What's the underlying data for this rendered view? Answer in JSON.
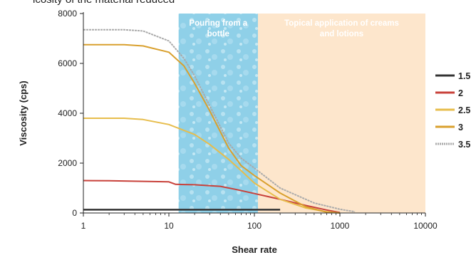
{
  "caption_fragment": "lcosity of the material reduced",
  "chart_data": {
    "type": "line",
    "xlabel": "Shear rate",
    "ylabel": "Viscosity (cps)",
    "x_scale": "log",
    "xlim": [
      1,
      10000
    ],
    "ylim": [
      0,
      8000
    ],
    "x_ticks": [
      1,
      10,
      100,
      1000,
      10000
    ],
    "x_tick_labels": [
      "1",
      "10",
      "100",
      "1000",
      "10000"
    ],
    "y_ticks": [
      0,
      2000,
      4000,
      6000,
      8000
    ],
    "y_tick_labels": [
      "0",
      "2000",
      "4000",
      "6000",
      "8000"
    ],
    "grid": false,
    "legend_position": "right",
    "regions": [
      {
        "label_lines": [
          "Pouring from a",
          "bottle"
        ],
        "x_range": [
          13,
          110
        ],
        "color": "#8fd0e8"
      },
      {
        "label_lines": [
          "Topical application of creams",
          "and lotions"
        ],
        "x_range": [
          110,
          10000
        ],
        "color": "#fde6cc"
      }
    ],
    "series": [
      {
        "name": "1.5",
        "color": "#333333",
        "x": [
          1,
          10,
          50,
          200
        ],
        "y": [
          130,
          130,
          130,
          130
        ]
      },
      {
        "name": "2",
        "color": "#c8413a",
        "x": [
          1,
          2,
          5,
          10,
          12,
          20,
          40,
          60,
          100,
          200,
          400,
          700,
          1000
        ],
        "y": [
          1300,
          1290,
          1270,
          1250,
          1150,
          1130,
          1070,
          950,
          780,
          550,
          300,
          120,
          20
        ]
      },
      {
        "name": "2.5",
        "color": "#e7bd4c",
        "x": [
          1,
          3,
          5,
          10,
          20,
          30,
          50,
          70,
          100,
          200,
          400,
          700,
          1000
        ],
        "y": [
          3800,
          3800,
          3750,
          3550,
          3150,
          2750,
          2150,
          1700,
          1200,
          550,
          200,
          50,
          0
        ]
      },
      {
        "name": "3",
        "color": "#d9a02e",
        "x": [
          1,
          3,
          5,
          10,
          15,
          20,
          30,
          50,
          70,
          100,
          200,
          400,
          700,
          1000
        ],
        "y": [
          6750,
          6750,
          6700,
          6450,
          5900,
          5200,
          4100,
          2600,
          1900,
          1500,
          800,
          250,
          30,
          0
        ]
      },
      {
        "name": "3.5",
        "color": "#aaaaaa",
        "x": [
          1,
          3,
          5,
          10,
          15,
          20,
          30,
          50,
          70,
          100,
          200,
          500,
          1000,
          1500
        ],
        "y": [
          7350,
          7350,
          7300,
          6900,
          6200,
          5500,
          4300,
          2800,
          2200,
          1800,
          1000,
          400,
          150,
          50
        ]
      }
    ]
  }
}
